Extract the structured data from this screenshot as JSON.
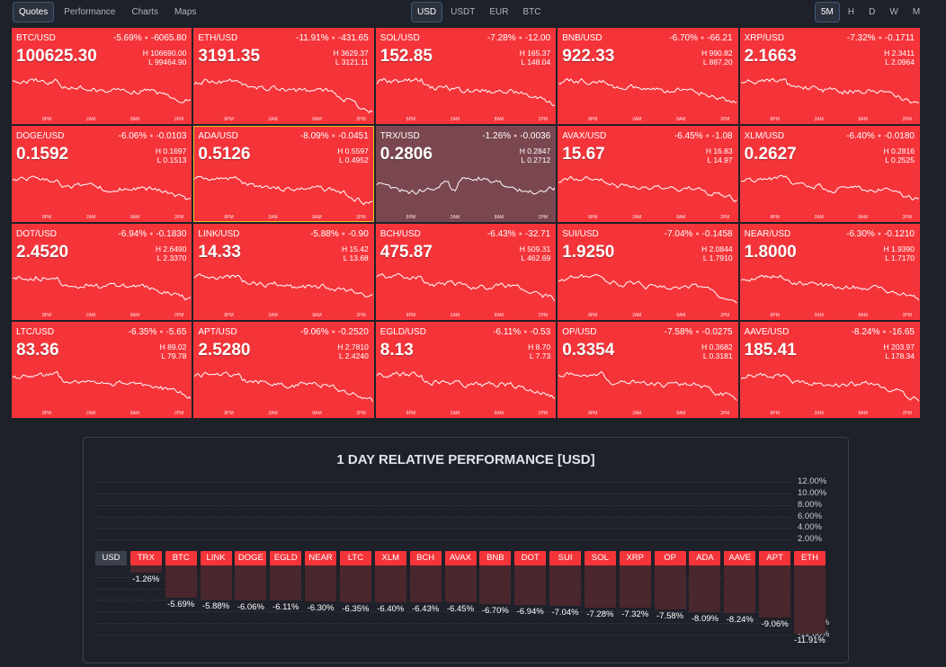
{
  "nav": {
    "tabs": [
      "Quotes",
      "Performance",
      "Charts",
      "Maps"
    ],
    "selected": "Quotes"
  },
  "currencies": {
    "items": [
      "USD",
      "USDT",
      "EUR",
      "BTC"
    ],
    "selected": "USD"
  },
  "timeframes": {
    "items": [
      "5M",
      "H",
      "D",
      "W",
      "M"
    ],
    "selected": "5M"
  },
  "time_labels": [
    "8PM",
    "2AM",
    "8AM",
    "2PM"
  ],
  "colors": {
    "down": "#f5343a",
    "neutral": "#7a4750",
    "bg": "#1e2129",
    "highlight": "#e6c229"
  },
  "tiles": [
    {
      "pair": "BTC/USD",
      "pct": "-5.69%",
      "chg": "-6065.80",
      "price": "100625.30",
      "high": "106690.00",
      "low": "99464.90"
    },
    {
      "pair": "ETH/USD",
      "pct": "-11.91%",
      "chg": "-431.65",
      "price": "3191.35",
      "high": "3629.37",
      "low": "3121.11"
    },
    {
      "pair": "SOL/USD",
      "pct": "-7.28%",
      "chg": "-12.00",
      "price": "152.85",
      "high": "165.37",
      "low": "148.04"
    },
    {
      "pair": "BNB/USD",
      "pct": "-6.70%",
      "chg": "-66.21",
      "price": "922.33",
      "high": "990.82",
      "low": "887.20"
    },
    {
      "pair": "XRP/USD",
      "pct": "-7.32%",
      "chg": "-0.1711",
      "price": "2.1663",
      "high": "2.3411",
      "low": "2.0964"
    },
    {
      "pair": "DOGE/USD",
      "pct": "-6.06%",
      "chg": "-0.0103",
      "price": "0.1592",
      "high": "0.1697",
      "low": "0.1513"
    },
    {
      "pair": "ADA/USD",
      "pct": "-8.09%",
      "chg": "-0.0451",
      "price": "0.5126",
      "high": "0.5597",
      "low": "0.4952"
    },
    {
      "pair": "TRX/USD",
      "pct": "-1.26%",
      "chg": "-0.0036",
      "price": "0.2806",
      "high": "0.2847",
      "low": "0.2712"
    },
    {
      "pair": "AVAX/USD",
      "pct": "-6.45%",
      "chg": "-1.08",
      "price": "15.67",
      "high": "16.83",
      "low": "14.97"
    },
    {
      "pair": "XLM/USD",
      "pct": "-6.40%",
      "chg": "-0.0180",
      "price": "0.2627",
      "high": "0.2816",
      "low": "0.2525"
    },
    {
      "pair": "DOT/USD",
      "pct": "-6.94%",
      "chg": "-0.1830",
      "price": "2.4520",
      "high": "2.6490",
      "low": "2.3370"
    },
    {
      "pair": "LINK/USD",
      "pct": "-5.88%",
      "chg": "-0.90",
      "price": "14.33",
      "high": "15.42",
      "low": "13.68"
    },
    {
      "pair": "BCH/USD",
      "pct": "-6.43%",
      "chg": "-32.71",
      "price": "475.87",
      "high": "509.31",
      "low": "462.69"
    },
    {
      "pair": "SUI/USD",
      "pct": "-7.04%",
      "chg": "-0.1458",
      "price": "1.9250",
      "high": "2.0844",
      "low": "1.7910"
    },
    {
      "pair": "NEAR/USD",
      "pct": "-6.30%",
      "chg": "-0.1210",
      "price": "1.8000",
      "high": "1.9390",
      "low": "1.7170"
    },
    {
      "pair": "LTC/USD",
      "pct": "-6.35%",
      "chg": "-5.65",
      "price": "83.36",
      "high": "89.02",
      "low": "79.78"
    },
    {
      "pair": "APT/USD",
      "pct": "-9.06%",
      "chg": "-0.2520",
      "price": "2.5280",
      "high": "2.7810",
      "low": "2.4240"
    },
    {
      "pair": "EGLD/USD",
      "pct": "-6.11%",
      "chg": "-0.53",
      "price": "8.13",
      "high": "8.70",
      "low": "7.73"
    },
    {
      "pair": "OP/USD",
      "pct": "-7.58%",
      "chg": "-0.0275",
      "price": "0.3354",
      "high": "0.3682",
      "low": "0.3181"
    },
    {
      "pair": "AAVE/USD",
      "pct": "-8.24%",
      "chg": "-16.65",
      "price": "185.41",
      "high": "203.97",
      "low": "178.34"
    }
  ],
  "chart_data": {
    "type": "bar",
    "title": "1 DAY RELATIVE PERFORMANCE  [USD]",
    "base": "USD",
    "categories": [
      "TRX",
      "BTC",
      "LINK",
      "DOGE",
      "EGLD",
      "NEAR",
      "LTC",
      "XLM",
      "BCH",
      "AVAX",
      "BNB",
      "DOT",
      "SUI",
      "SOL",
      "XRP",
      "OP",
      "ADA",
      "AAVE",
      "APT",
      "ETH"
    ],
    "values": [
      -1.26,
      -5.69,
      -5.88,
      -6.06,
      -6.11,
      -6.3,
      -6.35,
      -6.4,
      -6.43,
      -6.45,
      -6.7,
      -6.94,
      -7.04,
      -7.28,
      -7.32,
      -7.58,
      -8.09,
      -8.24,
      -9.06,
      -11.91
    ],
    "labels": [
      "-1.26%",
      "-5.69%",
      "-5.88%",
      "-6.06%",
      "-6.11%",
      "-6.30%",
      "-6.35%",
      "-6.40%",
      "-6.43%",
      "-6.45%",
      "-6.70%",
      "-6.94%",
      "-7.04%",
      "-7.28%",
      "-7.32%",
      "-7.58%",
      "-8.09%",
      "-8.24%",
      "-9.06%",
      "-11.91%"
    ],
    "yticks_pos": [
      "12.00%",
      "10.00%",
      "8.00%",
      "6.00%",
      "4.00%",
      "2.00%"
    ],
    "yticks_neg": [
      "-2.00%",
      "-4.00%",
      "-6.00%",
      "-8.00%",
      "-10.00%",
      "-12.00%"
    ],
    "ylim": [
      -12,
      12
    ]
  }
}
